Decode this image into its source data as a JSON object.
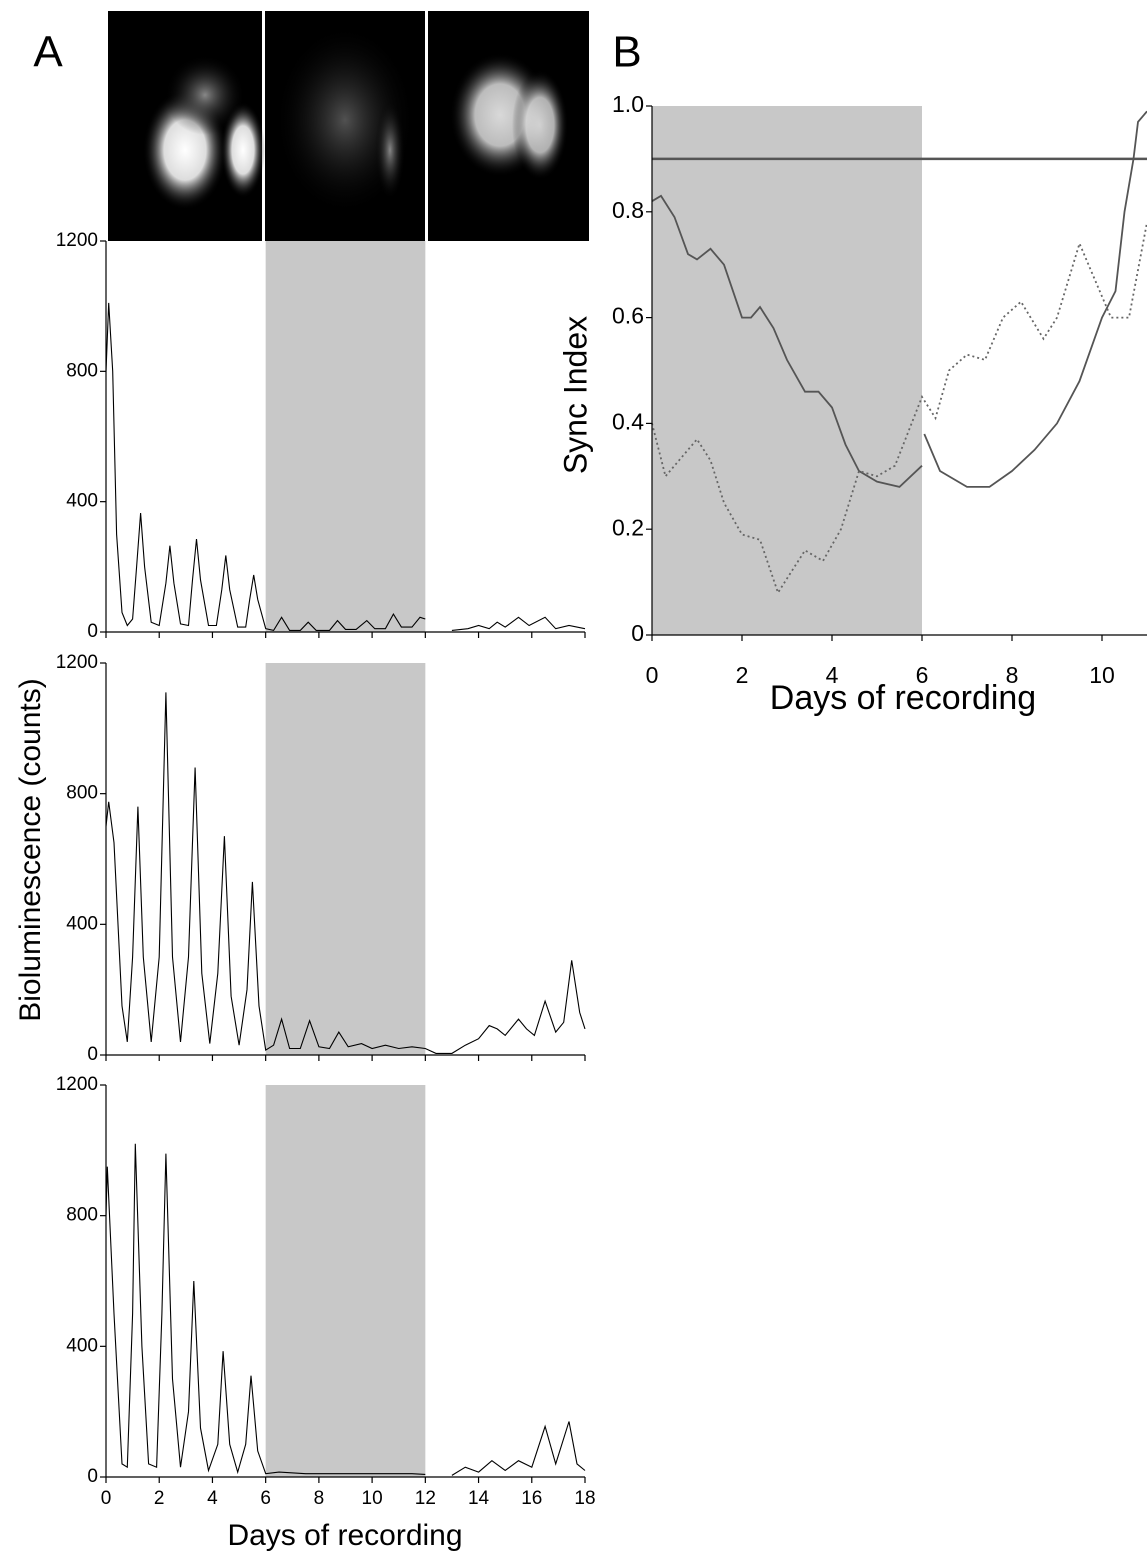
{
  "chart_data": [
    {
      "type": "line",
      "panel": "A",
      "xlim": [
        0,
        18
      ],
      "ylim": [
        0,
        1200
      ],
      "xticks": [
        0,
        2,
        4,
        6,
        8,
        10,
        12,
        14,
        16,
        18
      ],
      "yticks": [
        0,
        400,
        800,
        1200
      ],
      "xtick_labels": false,
      "shade": [
        6,
        12
      ],
      "shade_color": "#c8c8c8",
      "series": [
        {
          "color": "#000000",
          "x": [
            0,
            0.1,
            0.25,
            0.4,
            0.6,
            0.8,
            1.0,
            1.15,
            1.3,
            1.45,
            1.7,
            2.0,
            2.25,
            2.4,
            2.55,
            2.8,
            3.1,
            3.25,
            3.4,
            3.55,
            3.85,
            4.15,
            4.35,
            4.5,
            4.65,
            4.95,
            5.25,
            5.4,
            5.55,
            5.7,
            6.0,
            6.3,
            6.6,
            6.9,
            7.3,
            7.6,
            7.9,
            8.4,
            8.7,
            9.0,
            9.4,
            9.8,
            10.1,
            10.5,
            10.8,
            11.1,
            11.5,
            11.8,
            12.0,
            12.4,
            13.0,
            13.6,
            14.0,
            14.4,
            14.7,
            15.0,
            15.5,
            15.9,
            16.5,
            16.9,
            17.4,
            18
          ],
          "values": [
            800,
            1010,
            800,
            300,
            60,
            20,
            40,
            200,
            365,
            200,
            30,
            20,
            150,
            265,
            150,
            25,
            20,
            160,
            285,
            160,
            20,
            20,
            130,
            235,
            130,
            15,
            15,
            100,
            175,
            100,
            10,
            5,
            45,
            5,
            5,
            30,
            5,
            5,
            35,
            8,
            8,
            35,
            10,
            10,
            55,
            15,
            15,
            45,
            40,
            null,
            5,
            10,
            20,
            10,
            30,
            15,
            45,
            20,
            45,
            10,
            20,
            10
          ]
        }
      ]
    },
    {
      "type": "line",
      "ylabel": "Bioluminescence (counts)",
      "xlim": [
        0,
        18
      ],
      "ylim": [
        0,
        1200
      ],
      "xticks": [
        0,
        2,
        4,
        6,
        8,
        10,
        12,
        14,
        16,
        18
      ],
      "yticks": [
        0,
        400,
        800,
        1200
      ],
      "xtick_labels": false,
      "shade": [
        6,
        12
      ],
      "shade_color": "#c8c8c8",
      "series": [
        {
          "color": "#000000",
          "x": [
            0,
            0.1,
            0.3,
            0.6,
            0.8,
            1.0,
            1.2,
            1.4,
            1.7,
            2.0,
            2.25,
            2.5,
            2.8,
            3.1,
            3.35,
            3.6,
            3.9,
            4.2,
            4.45,
            4.7,
            5.0,
            5.3,
            5.5,
            5.75,
            6.0,
            6.3,
            6.6,
            6.9,
            7.3,
            7.65,
            8.0,
            8.4,
            8.75,
            9.1,
            9.6,
            10.0,
            10.5,
            11.0,
            11.5,
            12.0,
            12.4,
            13.0,
            13.5,
            14.0,
            14.4,
            14.7,
            15.0,
            15.5,
            15.8,
            16.1,
            16.5,
            16.9,
            17.2,
            17.5,
            17.8,
            18
          ],
          "values": [
            700,
            775,
            650,
            150,
            40,
            300,
            760,
            300,
            40,
            300,
            1110,
            300,
            40,
            300,
            880,
            250,
            35,
            250,
            670,
            180,
            30,
            200,
            530,
            150,
            15,
            30,
            110,
            20,
            20,
            105,
            25,
            20,
            70,
            25,
            35,
            20,
            30,
            20,
            25,
            20,
            5,
            5,
            30,
            50,
            90,
            80,
            60,
            110,
            80,
            60,
            165,
            70,
            100,
            290,
            130,
            80
          ]
        }
      ]
    },
    {
      "type": "line",
      "xlabel": "Days of recording",
      "xlim": [
        0,
        18
      ],
      "ylim": [
        0,
        1200
      ],
      "xticks": [
        0,
        2,
        4,
        6,
        8,
        10,
        12,
        14,
        16,
        18
      ],
      "yticks": [
        0,
        400,
        800,
        1200
      ],
      "shade": [
        6,
        12
      ],
      "shade_color": "#c8c8c8",
      "series": [
        {
          "color": "#000000",
          "x": [
            0,
            0.05,
            0.3,
            0.6,
            0.8,
            1.0,
            1.1,
            1.35,
            1.6,
            1.9,
            2.1,
            2.25,
            2.5,
            2.8,
            3.1,
            3.3,
            3.55,
            3.85,
            4.2,
            4.4,
            4.65,
            4.95,
            5.25,
            5.45,
            5.7,
            6.0,
            6.5,
            7.5,
            8.5,
            9.5,
            10.5,
            11.5,
            12.0,
            12.1,
            13.0,
            13.5,
            14.0,
            14.5,
            15.0,
            15.5,
            16.0,
            16.5,
            16.9,
            17.4,
            17.7,
            18
          ],
          "values": [
            800,
            950,
            500,
            40,
            30,
            500,
            1020,
            400,
            40,
            30,
            500,
            990,
            300,
            30,
            200,
            600,
            150,
            20,
            100,
            385,
            100,
            15,
            100,
            310,
            80,
            10,
            15,
            10,
            10,
            10,
            10,
            10,
            8,
            null,
            5,
            30,
            15,
            50,
            20,
            50,
            30,
            155,
            40,
            170,
            40,
            20
          ]
        }
      ]
    },
    {
      "type": "line",
      "panel": "B",
      "xlabel": "Days of recording",
      "ylabel": "Sync Index",
      "xlim": [
        0,
        11
      ],
      "ylim": [
        0,
        1
      ],
      "xticks": [
        0,
        2,
        4,
        6,
        8,
        10
      ],
      "yticks": [
        0,
        0.2,
        0.4,
        0.6,
        0.8,
        {
          "value": 1,
          "label": "1.0"
        }
      ],
      "shade": [
        0,
        6
      ],
      "shade_color": "#c8c8c8",
      "hline": 0.9,
      "hline_color": "#555555",
      "series": [
        {
          "color": "#555555",
          "x": [
            0,
            0.2,
            0.5,
            0.8,
            1.0,
            1.3,
            1.6,
            2.0,
            2.2,
            2.4,
            2.7,
            3.0,
            3.4,
            3.7,
            4.0,
            4.3,
            4.6,
            5.0,
            5.5,
            6.0,
            6.02,
            6.05,
            6.4,
            7.0,
            7.5,
            8.0,
            8.5,
            9.0,
            9.5,
            10.0,
            10.3,
            10.5,
            10.7,
            10.8,
            11
          ],
          "values": [
            0.82,
            0.83,
            0.79,
            0.72,
            0.71,
            0.73,
            0.7,
            0.6,
            0.6,
            0.62,
            0.58,
            0.52,
            0.46,
            0.46,
            0.43,
            0.36,
            0.31,
            0.29,
            0.28,
            0.32,
            null,
            0.38,
            0.31,
            0.28,
            0.28,
            0.31,
            0.35,
            0.4,
            0.48,
            0.6,
            0.65,
            0.8,
            0.9,
            0.97,
            0.99
          ]
        },
        {
          "color": "#666666",
          "dash": "dotted",
          "x": [
            0,
            0.3,
            0.6,
            1.0,
            1.3,
            1.6,
            2.0,
            2.4,
            2.8,
            3.1,
            3.4,
            3.8,
            4.2,
            4.6,
            5.0,
            5.4,
            6.0,
            6.3,
            6.6,
            7.0,
            7.4,
            7.8,
            8.2,
            8.7,
            9.0,
            9.5,
            9.8,
            10.2,
            10.6,
            11
          ],
          "values": [
            0.4,
            0.3,
            0.33,
            0.37,
            0.33,
            0.25,
            0.19,
            0.18,
            0.08,
            0.12,
            0.16,
            0.14,
            0.2,
            0.31,
            0.3,
            0.32,
            0.45,
            0.41,
            0.5,
            0.53,
            0.52,
            0.6,
            0.63,
            0.56,
            0.6,
            0.74,
            0.68,
            0.6,
            0.6,
            0.78
          ]
        }
      ]
    }
  ]
}
